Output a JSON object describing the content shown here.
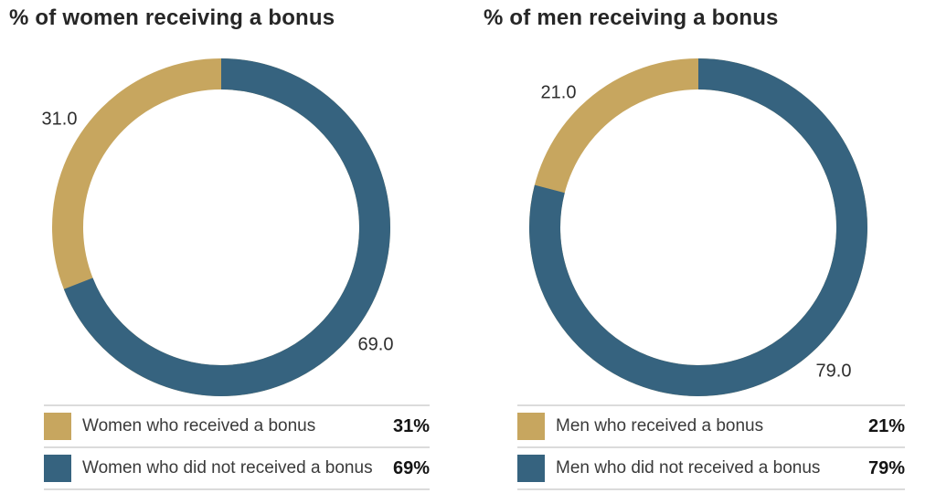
{
  "colors": {
    "gold": "#C7A65F",
    "blue": "#36637F",
    "separator": "#dbdbdb",
    "title_text": "#262626",
    "label_text": "#2d2d2d"
  },
  "chart_data": [
    {
      "type": "pie",
      "subtype": "donut",
      "title": "% of women receiving a bonus",
      "labels": [
        "Women who received a bonus",
        "Women who did not received a bonus"
      ],
      "values": [
        31.0,
        69.0
      ],
      "slice_labels": [
        "31.0",
        "69.0"
      ],
      "legend_values": [
        "31%",
        "69%"
      ],
      "colors": [
        "#C7A65F",
        "#36637F"
      ],
      "start_angle": "12-oclock",
      "first_slice_direction": "counterclockwise",
      "donut_hole_ratio": 0.82,
      "legend_position": "bottom"
    },
    {
      "type": "pie",
      "subtype": "donut",
      "title": "% of men receiving a bonus",
      "labels": [
        "Men who received a bonus",
        "Men who did not received a bonus"
      ],
      "values": [
        21.0,
        79.0
      ],
      "slice_labels": [
        "21.0",
        "79.0"
      ],
      "legend_values": [
        "21%",
        "79%"
      ],
      "colors": [
        "#C7A65F",
        "#36637F"
      ],
      "start_angle": "12-oclock",
      "first_slice_direction": "counterclockwise",
      "donut_hole_ratio": 0.82,
      "legend_position": "bottom"
    }
  ]
}
